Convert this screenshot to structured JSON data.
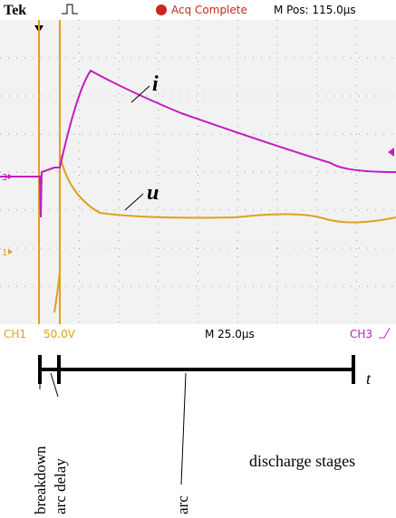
{
  "header": {
    "brand": "Tek",
    "status": "Acq Complete",
    "position": "M Pos: 115.0µs"
  },
  "footer": {
    "channel1": "CH1",
    "scale1": "50.0V",
    "timebase": "M 25.0µs",
    "channel3": "CH3"
  },
  "markers": {
    "ch3": "3",
    "ch1": "1"
  },
  "traces": {
    "current": "i",
    "voltage": "u"
  },
  "timeline": {
    "axis": "t",
    "title": "discharge stages",
    "stages": [
      "breakdown",
      "arc delay",
      "arc"
    ]
  }
}
